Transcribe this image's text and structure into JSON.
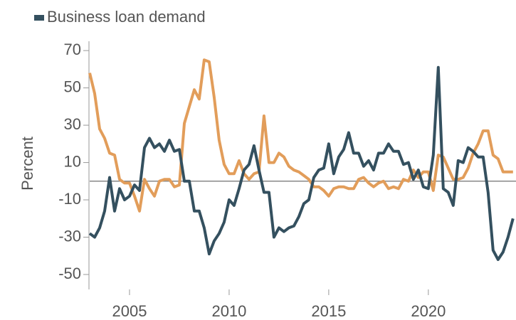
{
  "chart_data": {
    "type": "line",
    "x": [
      2003,
      2003.25,
      2003.5,
      2003.75,
      2004,
      2004.25,
      2004.5,
      2004.75,
      2005,
      2005.25,
      2005.5,
      2005.75,
      2006,
      2006.25,
      2006.5,
      2006.75,
      2007,
      2007.25,
      2007.5,
      2007.75,
      2008,
      2008.25,
      2008.5,
      2008.75,
      2009,
      2009.25,
      2009.5,
      2009.75,
      2010,
      2010.25,
      2010.5,
      2010.75,
      2011,
      2011.25,
      2011.5,
      2011.75,
      2012,
      2012.25,
      2012.5,
      2012.75,
      2013,
      2013.25,
      2013.5,
      2013.75,
      2014,
      2014.25,
      2014.5,
      2014.75,
      2015,
      2015.25,
      2015.5,
      2015.75,
      2016,
      2016.25,
      2016.5,
      2016.75,
      2017,
      2017.25,
      2017.5,
      2017.75,
      2018,
      2018.25,
      2018.5,
      2018.75,
      2019,
      2019.25,
      2019.5,
      2019.75,
      2020,
      2020.25,
      2020.5,
      2020.75,
      2021,
      2021.25,
      2021.5,
      2021.75,
      2022,
      2022.25,
      2022.5,
      2022.75,
      2023,
      2023.25,
      2023.5,
      2023.75,
      2024,
      2024.25
    ],
    "series": [
      {
        "name": "Business loan demand",
        "color": "#34505f",
        "values": [
          -28,
          -30,
          -25,
          -16,
          2,
          -16,
          -4,
          -10,
          -8,
          -2,
          -5,
          18,
          23,
          18,
          20,
          16,
          22,
          16,
          17,
          0,
          0,
          -16,
          -16,
          -25,
          -39,
          -32,
          -28,
          -22,
          -10,
          -13,
          -4,
          6,
          9,
          19,
          6,
          -6,
          -6,
          -30,
          -25,
          -27,
          -25,
          -24,
          -19,
          -12,
          -10,
          2,
          6,
          7,
          20,
          4,
          13,
          17,
          26,
          15,
          15,
          8,
          11,
          6,
          15,
          15,
          20,
          16,
          16,
          9,
          10,
          1,
          6,
          -3,
          -4,
          14,
          61,
          -4,
          -6,
          -13,
          11,
          10,
          18,
          16,
          13,
          13,
          -6,
          -37,
          -42,
          -38,
          -30,
          -20
        ]
      },
      {
        "color": "#e29d5a",
        "values": [
          58,
          47,
          28,
          23,
          15,
          14,
          1,
          -1,
          -1,
          -8,
          -16,
          1,
          -4,
          -8,
          0,
          1,
          1,
          -3,
          -2,
          31,
          40,
          49,
          44,
          65,
          64,
          45,
          22,
          9,
          4,
          4,
          11,
          4,
          1,
          4,
          5,
          35,
          10,
          10,
          15,
          13,
          8,
          6,
          5,
          3,
          1,
          -3,
          -3,
          -5,
          -8,
          -4,
          -3,
          -3,
          -4,
          -4,
          1,
          2,
          -1,
          -3,
          -1,
          0,
          -4,
          -3,
          -4,
          1,
          0,
          6,
          2,
          5,
          5,
          -5,
          14,
          13,
          7,
          1,
          1,
          2,
          7,
          15,
          20,
          27,
          27,
          14,
          12,
          5,
          5,
          5
        ]
      }
    ],
    "y_label": "Percent",
    "xlim": [
      2003,
      2024.4
    ],
    "xticks": [
      2005,
      2010,
      2015,
      2020
    ],
    "ylim": [
      -58,
      75
    ],
    "yticks": [
      70,
      50,
      30,
      10,
      -10,
      -30,
      -50
    ],
    "zero_line": true,
    "legend": "top-left"
  }
}
